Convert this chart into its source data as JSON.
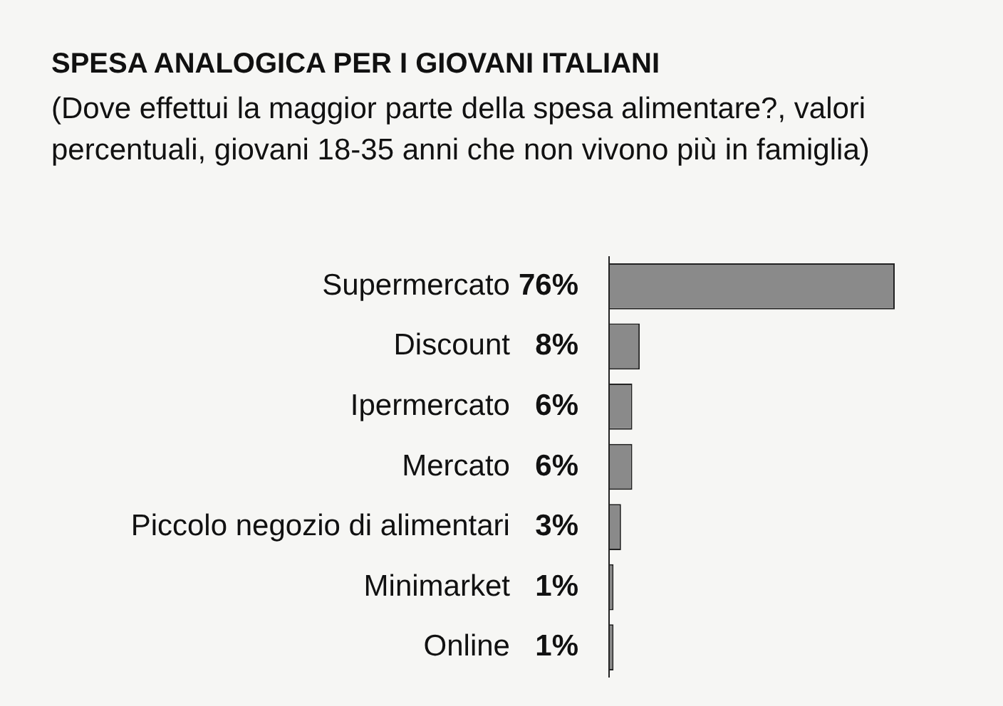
{
  "chart_data": {
    "type": "bar",
    "orientation": "horizontal",
    "title": "SPESA ANALOGICA PER I GIOVANI ITALIANI",
    "subtitle": "(Dove effettui la maggior parte della spesa alimentare?, valori percentuali, giovani 18-35 anni che non vivono più in famiglia)",
    "categories": [
      "Supermercato",
      "Discount",
      "Ipermercato",
      "Mercato",
      "Piccolo negozio di alimentari",
      "Minimarket",
      "Online"
    ],
    "values": [
      76,
      8,
      6,
      6,
      3,
      1,
      1
    ],
    "value_labels": [
      "76%",
      "8%",
      "6%",
      "6%",
      "3%",
      "1%",
      "1%"
    ],
    "color": "#8a8a8a",
    "grid": false,
    "legend": false
  }
}
